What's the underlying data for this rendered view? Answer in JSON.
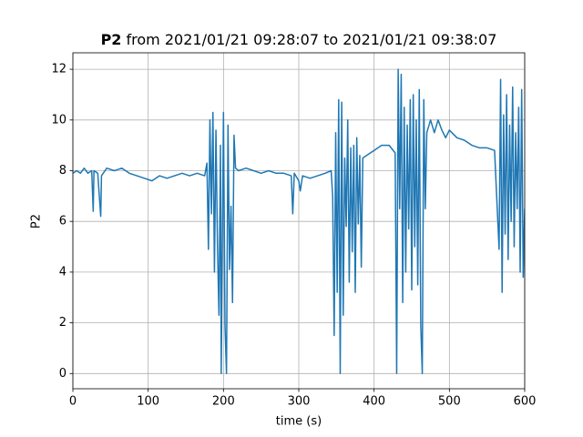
{
  "chart_data": {
    "type": "line",
    "title_prefix": "P2",
    "title": "from 2021/01/21 09:28:07 to 2021/01/21 09:38:07",
    "xlabel": "time (s)",
    "ylabel": "P2",
    "xlim": [
      0,
      600
    ],
    "ylim": [
      -0.6,
      12.65
    ],
    "xticks": [
      0,
      100,
      200,
      300,
      400,
      500,
      600
    ],
    "yticks": [
      0,
      2,
      4,
      6,
      8,
      10,
      12
    ],
    "grid": true,
    "x": [
      0,
      5,
      10,
      15,
      20,
      25,
      27,
      28,
      33,
      37,
      38,
      45,
      55,
      65,
      75,
      85,
      95,
      105,
      115,
      125,
      135,
      145,
      155,
      165,
      175,
      178,
      180,
      182,
      184,
      186,
      188,
      190,
      192,
      194,
      196,
      197,
      199,
      200,
      202,
      204,
      206,
      208,
      210,
      212,
      214,
      216,
      220,
      230,
      240,
      250,
      260,
      270,
      280,
      290,
      292,
      294,
      300,
      302,
      305,
      315,
      325,
      335,
      343,
      345,
      347,
      349,
      351,
      353,
      355,
      357,
      359,
      361,
      363,
      365,
      367,
      369,
      371,
      373,
      375,
      377,
      379,
      381,
      383,
      385,
      390,
      400,
      410,
      420,
      428,
      430,
      432,
      434,
      436,
      438,
      440,
      442,
      444,
      446,
      448,
      450,
      452,
      454,
      456,
      458,
      460,
      462,
      464,
      466,
      468,
      470,
      475,
      480,
      485,
      490,
      495,
      500,
      510,
      520,
      530,
      540,
      550,
      560,
      566,
      568,
      570,
      572,
      574,
      576,
      578,
      580,
      582,
      584,
      586,
      588,
      590,
      592,
      594,
      596,
      598,
      600
    ],
    "series": [
      {
        "name": "P2",
        "color": "#1f77b4",
        "values": [
          7.9,
          8.0,
          7.9,
          8.1,
          7.9,
          8.0,
          6.4,
          8.0,
          7.9,
          6.2,
          7.8,
          8.1,
          8.0,
          8.1,
          7.9,
          7.8,
          7.7,
          7.6,
          7.8,
          7.7,
          7.8,
          7.9,
          7.8,
          7.9,
          7.8,
          8.3,
          4.9,
          10.0,
          6.3,
          10.3,
          4.0,
          9.6,
          5.1,
          2.3,
          9.0,
          0.0,
          7.0,
          10.3,
          1.9,
          0.0,
          9.8,
          4.1,
          6.6,
          2.8,
          9.4,
          8.1,
          8.0,
          8.1,
          8.0,
          7.9,
          8.0,
          7.9,
          7.9,
          7.8,
          6.3,
          7.9,
          7.6,
          7.2,
          7.8,
          7.7,
          7.8,
          7.9,
          8.0,
          7.0,
          1.5,
          9.5,
          3.2,
          10.8,
          0.0,
          10.7,
          2.3,
          8.5,
          5.8,
          10.0,
          3.6,
          8.9,
          4.8,
          9.0,
          3.2,
          9.3,
          5.9,
          8.6,
          4.2,
          8.5,
          8.6,
          8.8,
          9.0,
          9.0,
          8.7,
          0.0,
          12.0,
          6.5,
          11.8,
          2.8,
          10.5,
          4.0,
          9.8,
          5.7,
          10.8,
          3.3,
          11.0,
          5.0,
          10.0,
          3.5,
          11.2,
          1.9,
          0.0,
          10.8,
          6.5,
          9.5,
          10.0,
          9.5,
          10.0,
          9.6,
          9.3,
          9.6,
          9.3,
          9.2,
          9.0,
          8.9,
          8.9,
          8.8,
          4.9,
          11.6,
          3.2,
          10.2,
          5.5,
          11.0,
          4.5,
          9.8,
          6.0,
          11.3,
          5.0,
          9.5,
          6.5,
          10.5,
          4.0,
          11.2,
          3.8,
          6.5
        ]
      }
    ]
  }
}
